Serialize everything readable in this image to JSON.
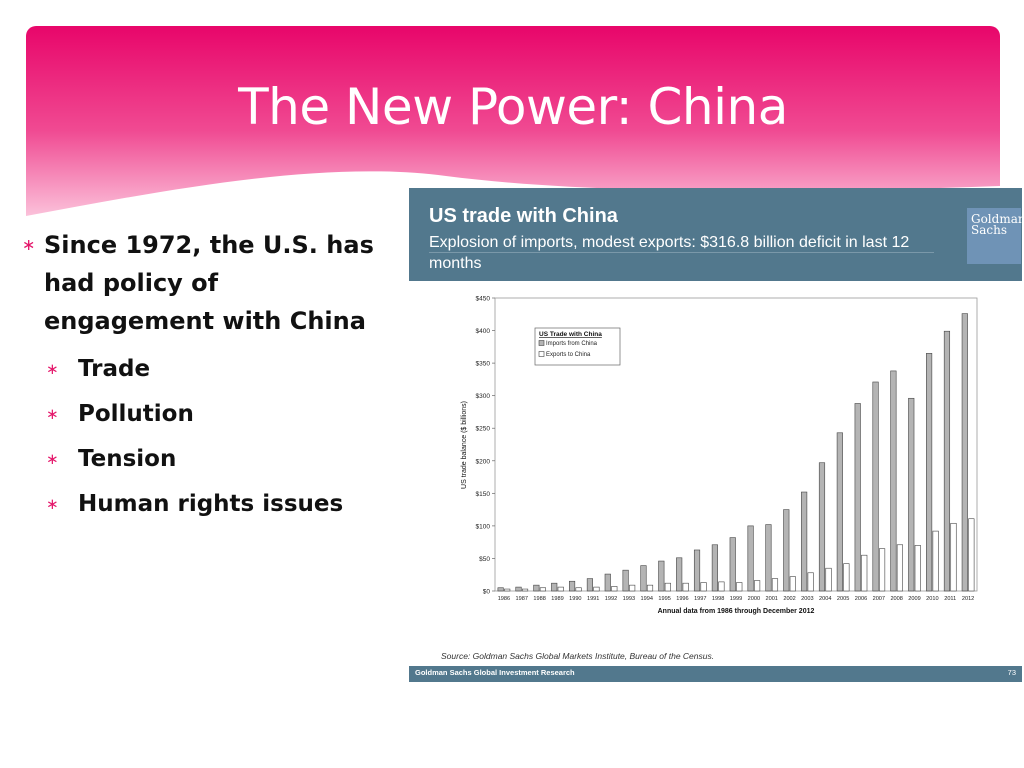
{
  "slide": {
    "title": "The New Power: China",
    "bullet_main": "Since 1972, the U.S. has had policy of engagement with China",
    "sub_bullets": [
      "Trade",
      "Pollution",
      "Tension",
      "Human rights issues"
    ],
    "bullet_marker": "∗",
    "accent_color": "#e4166a"
  },
  "panel": {
    "title": "US trade with China",
    "subtitle": "Explosion of imports, modest exports: $316.8 billion deficit in last 12 months",
    "logo_line1": "Goldman",
    "logo_line2": "Sachs",
    "source": "Source: Goldman Sachs Global Markets Institute, Bureau of the Census.",
    "footer_left": "Goldman Sachs Global Investment Research",
    "footer_right": "73",
    "header_color": "#52788d"
  },
  "chart_data": {
    "type": "bar",
    "title": "",
    "xlabel": "Annual data from 1986 through December 2012",
    "ylabel": "US trade balance ($ billions)",
    "ylim": [
      0,
      450
    ],
    "yticks": [
      "$0",
      "$50",
      "$100",
      "$150",
      "$200",
      "$250",
      "$300",
      "$350",
      "$400",
      "$450"
    ],
    "legend_title": "US Trade with China",
    "legend_position": "top-left",
    "categories": [
      "1986",
      "1987",
      "1988",
      "1989",
      "1990",
      "1991",
      "1992",
      "1993",
      "1994",
      "1995",
      "1996",
      "1997",
      "1998",
      "1999",
      "2000",
      "2001",
      "2002",
      "2003",
      "2004",
      "2005",
      "2006",
      "2007",
      "2008",
      "2009",
      "2010",
      "2011",
      "2012"
    ],
    "series": [
      {
        "name": "Imports from China",
        "color": "#b4b4b4",
        "values": [
          5,
          6,
          9,
          12,
          15,
          19,
          26,
          32,
          39,
          46,
          51,
          63,
          71,
          82,
          100,
          102,
          125,
          152,
          197,
          243,
          288,
          321,
          338,
          296,
          365,
          399,
          426
        ]
      },
      {
        "name": "Exports to China",
        "color": "#ffffff",
        "values": [
          3,
          3,
          5,
          6,
          5,
          6,
          7,
          9,
          9,
          12,
          12,
          13,
          14,
          13,
          16,
          19,
          22,
          28,
          35,
          42,
          55,
          65,
          71,
          70,
          92,
          104,
          111
        ]
      }
    ]
  }
}
